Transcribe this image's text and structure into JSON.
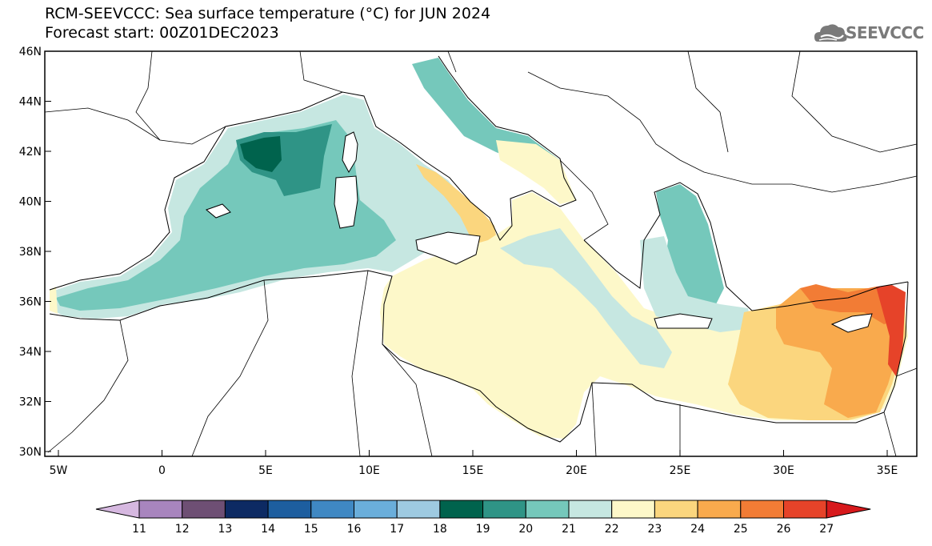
{
  "header": {
    "title_line1": "RCM-SEEVCCC: Sea surface temperature (°C) for JUN 2024",
    "title_line2": "Forecast start: 00Z01DEC2023"
  },
  "logo": {
    "text": "SEEVCCC",
    "icon": "cloud-icon"
  },
  "map": {
    "lat_labels": [
      "46N",
      "44N",
      "42N",
      "40N",
      "38N",
      "36N",
      "34N",
      "32N",
      "30N"
    ],
    "lon_labels": [
      "5W",
      "0",
      "5E",
      "10E",
      "15E",
      "20E",
      "25E",
      "30E",
      "35E"
    ]
  },
  "colorbar": {
    "labels": [
      "11",
      "12",
      "13",
      "14",
      "15",
      "16",
      "17",
      "18",
      "19",
      "20",
      "21",
      "22",
      "23",
      "24",
      "25",
      "26",
      "27"
    ],
    "colors": [
      "#d6b8e0",
      "#a885be",
      "#6e4f74",
      "#0d2a63",
      "#1d5e9f",
      "#3f88c3",
      "#6aaedb",
      "#9ecae1",
      "#00634d",
      "#2f9486",
      "#75c8bb",
      "#c6e7e1",
      "#fdf8c9",
      "#fbd67e",
      "#f9aa4d",
      "#f27c35",
      "#e64329",
      "#d7191c"
    ]
  },
  "colors": {
    "land": "#ffffff",
    "sea_cool": "#75c8bb",
    "sea_cold": "#2f9486",
    "sea_mild": "#c6e7e1",
    "sea_warm": "#fdf8c9",
    "sea_hot": "#fbd67e",
    "sea_hotter": "#f9aa4d",
    "sea_hottest": "#f27c35"
  }
}
